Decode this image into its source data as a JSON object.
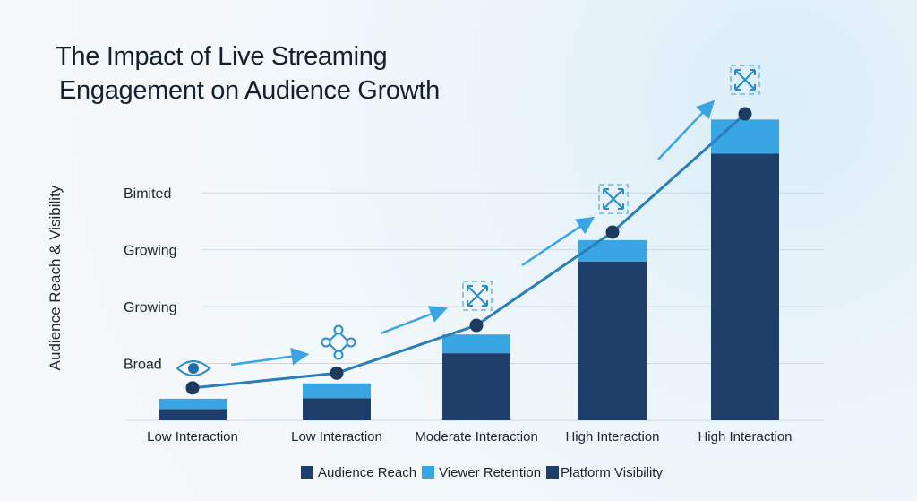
{
  "chart_data": {
    "type": "bar",
    "title": "The Impact of Live Streaming Engagement on Audience Growth",
    "title_lines": [
      "The Impact of Live Streaming",
      "Engagement on Audience Growth"
    ],
    "ylabel": "Audience Reach & Visibility",
    "xlabel": "",
    "stacked": true,
    "categories": [
      "Low Interaction",
      "Low Interaction",
      "Moderate Interaction",
      "High Interaction",
      "High Interaction"
    ],
    "y_tick_labels": [
      "Broad",
      "Growing",
      "Growing",
      "Bimited"
    ],
    "y_tick_values": [
      1,
      2,
      3,
      4
    ],
    "ylim": [
      0,
      5.8
    ],
    "grid": true,
    "legend_position": "bottom",
    "series": [
      {
        "name": "Audience Reach",
        "color": "#1f3f6b",
        "values": [
          0.2,
          0.39,
          1.18,
          2.79,
          4.69
        ]
      },
      {
        "name": "Viewer Retention",
        "color": "#3aa5e3",
        "values": [
          0.18,
          0.26,
          0.33,
          0.38,
          0.6
        ]
      }
    ],
    "line": {
      "name": "Platform Visibility",
      "color": "#2a7fb8",
      "marker_color": "#1f3a5f",
      "values": [
        0.57,
        0.83,
        1.67,
        3.31,
        5.39
      ]
    },
    "legend": [
      {
        "name": "Audience Reach",
        "color": "#1f3f6b"
      },
      {
        "name": "Viewer Retention",
        "color": "#3aa5e3"
      },
      {
        "name": "Platform Visibility",
        "color": "#1f3f6b"
      }
    ],
    "icons": [
      "eye-icon",
      "network-icon",
      "expand-icon",
      "expand-icon",
      "expand-icon"
    ]
  }
}
